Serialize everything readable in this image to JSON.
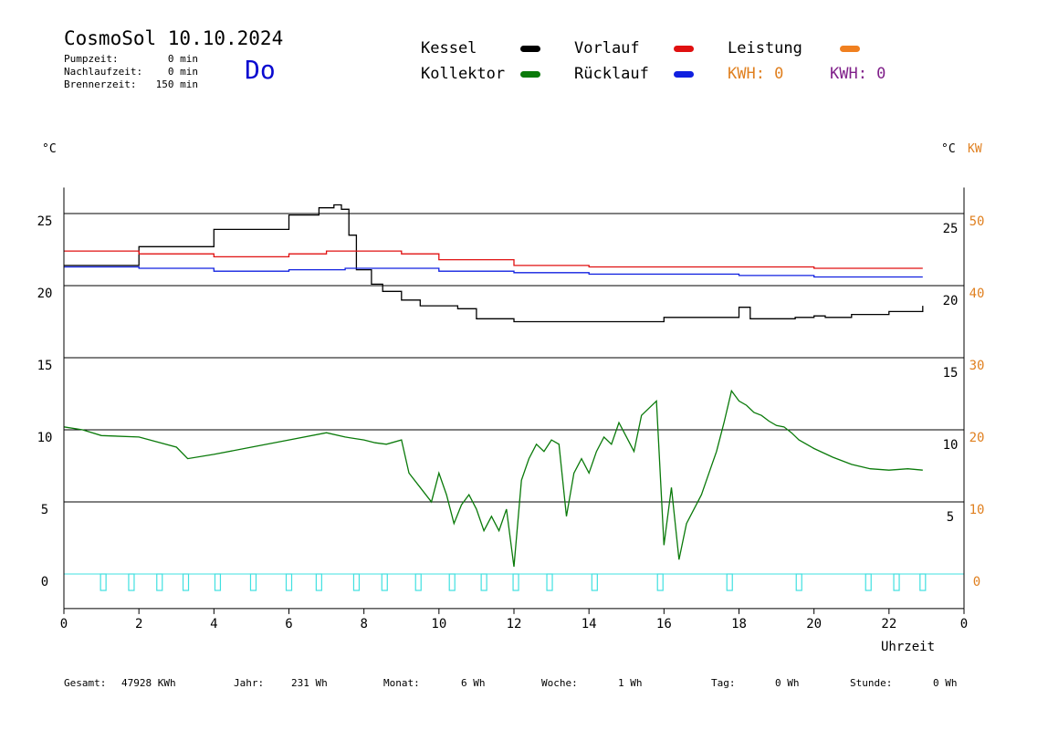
{
  "header": {
    "title": "CosmoSol 10.10.2024",
    "day": "Do",
    "info": [
      {
        "label": "Pumpzeit:",
        "value": "0 min"
      },
      {
        "label": "Nachlaufzeit:",
        "value": "0 min"
      },
      {
        "label": "Brennerzeit:",
        "value": "150 min"
      }
    ]
  },
  "legend": {
    "kessel": {
      "label": "Kessel",
      "color": "#000000"
    },
    "vorlauf": {
      "label": "Vorlauf",
      "color": "#e01010"
    },
    "leistung": {
      "label": "Leistung",
      "color": "#f08020"
    },
    "kollektor": {
      "label": "Kollektor",
      "color": "#0a7a0a"
    },
    "ruecklauf": {
      "label": "Rücklauf",
      "color": "#1020e0"
    },
    "kwh1": {
      "text": "KWH: 0",
      "color": "#e08020"
    },
    "kwh2": {
      "text": "KWH: 0",
      "color": "#80208a"
    }
  },
  "axes": {
    "left_unit": "°C",
    "right_unit_c": "°C",
    "right_unit_kw": "KW",
    "x_label": "Uhrzeit"
  },
  "footer": [
    {
      "label": "Gesamt:",
      "value": "47928 KWh"
    },
    {
      "label": "Jahr:",
      "value": "231 Wh"
    },
    {
      "label": "Monat:",
      "value": "6 Wh"
    },
    {
      "label": "Woche:",
      "value": "1 Wh"
    },
    {
      "label": "Tag:",
      "value": "0 Wh"
    },
    {
      "label": "Stunde:",
      "value": "0 Wh"
    }
  ],
  "chart_data": {
    "type": "line",
    "xlabel": "Uhrzeit",
    "ylabel": "°C",
    "xlim": [
      0,
      24
    ],
    "ylim": [
      -2,
      27
    ],
    "x_ticks": [
      "0",
      "2",
      "4",
      "6",
      "8",
      "10",
      "12",
      "14",
      "16",
      "18",
      "20",
      "22",
      "0"
    ],
    "y_ticks_left": [
      0,
      5,
      10,
      15,
      20,
      25
    ],
    "y_ticks_right_c": [
      5,
      10,
      15,
      20,
      25
    ],
    "y_ticks_right_kw": [
      0,
      10,
      20,
      30,
      40,
      50
    ],
    "grid_y": [
      5,
      10,
      15,
      20,
      25
    ],
    "series": [
      {
        "name": "Kessel",
        "color": "#000000",
        "x": [
          0,
          2,
          4,
          6,
          6.8,
          7.2,
          7.4,
          7.6,
          7.8,
          8.2,
          8.5,
          9,
          9.5,
          10.5,
          11,
          12,
          14,
          16,
          18,
          18.3,
          18.6,
          19.5,
          20,
          20.3,
          21,
          22,
          22.9
        ],
        "y": [
          21.4,
          22.7,
          23.9,
          24.9,
          25.4,
          25.6,
          25.3,
          23.5,
          21.1,
          20.1,
          19.6,
          19.0,
          18.6,
          18.4,
          17.7,
          17.5,
          17.5,
          17.8,
          18.5,
          17.7,
          17.7,
          17.8,
          17.9,
          17.8,
          18.0,
          18.2,
          18.6
        ]
      },
      {
        "name": "Vorlauf",
        "color": "#e01010",
        "x": [
          0,
          1,
          2,
          4,
          6,
          7,
          8,
          9,
          10,
          12,
          14,
          16,
          18,
          20,
          22.9
        ],
        "y": [
          22.4,
          22.4,
          22.2,
          22.0,
          22.2,
          22.4,
          22.4,
          22.2,
          21.8,
          21.4,
          21.3,
          21.3,
          21.3,
          21.2,
          21.2
        ]
      },
      {
        "name": "Rücklauf",
        "color": "#1020e0",
        "x": [
          0,
          1,
          2,
          4,
          6,
          7.5,
          8,
          10,
          12,
          14,
          16,
          18,
          20,
          22.9
        ],
        "y": [
          21.3,
          21.3,
          21.2,
          21.0,
          21.1,
          21.2,
          21.2,
          21.0,
          20.9,
          20.8,
          20.8,
          20.7,
          20.6,
          20.6
        ]
      },
      {
        "name": "Kollektor",
        "color": "#0a7a0a",
        "x": [
          0,
          0.5,
          1,
          2,
          3,
          3.3,
          4,
          5,
          6,
          7,
          7.5,
          8,
          8.3,
          8.6,
          9,
          9.2,
          9.5,
          9.8,
          10,
          10.2,
          10.4,
          10.6,
          10.8,
          11,
          11.2,
          11.4,
          11.6,
          11.8,
          12,
          12.2,
          12.4,
          12.6,
          12.8,
          13,
          13.2,
          13.4,
          13.6,
          13.8,
          14,
          14.2,
          14.4,
          14.6,
          14.8,
          15,
          15.2,
          15.4,
          15.6,
          15.8,
          16,
          16.2,
          16.4,
          16.6,
          16.8,
          17,
          17.2,
          17.4,
          17.6,
          17.8,
          18,
          18.2,
          18.4,
          18.6,
          18.8,
          19,
          19.2,
          19.4,
          19.6,
          20,
          20.5,
          21,
          21.5,
          22,
          22.5,
          22.9
        ],
        "y": [
          10.2,
          10.0,
          9.6,
          9.5,
          8.8,
          8.0,
          8.3,
          8.8,
          9.3,
          9.8,
          9.5,
          9.3,
          9.1,
          9.0,
          9.3,
          7.0,
          6.0,
          5.0,
          7.0,
          5.5,
          3.5,
          4.8,
          5.5,
          4.5,
          3.0,
          4.0,
          3.0,
          4.5,
          0.5,
          6.5,
          8.0,
          9.0,
          8.5,
          9.3,
          9.0,
          4.0,
          7.0,
          8.0,
          7.0,
          8.5,
          9.5,
          9.0,
          10.5,
          9.5,
          8.5,
          11.0,
          11.5,
          12.0,
          2.0,
          6.0,
          1.0,
          3.5,
          4.5,
          5.5,
          7.0,
          8.5,
          10.5,
          12.7,
          12.0,
          11.7,
          11.2,
          11.0,
          10.6,
          10.3,
          10.2,
          9.8,
          9.3,
          8.7,
          8.1,
          7.6,
          7.3,
          7.2,
          7.3,
          7.2
        ]
      }
    ],
    "pump_markers_x": [
      1.05,
      1.8,
      2.55,
      3.25,
      4.1,
      5.05,
      6.0,
      6.8,
      7.8,
      8.55,
      9.45,
      10.35,
      11.2,
      12.05,
      12.95,
      14.15,
      15.9,
      17.75,
      19.6,
      21.45,
      22.2,
      22.9
    ]
  }
}
